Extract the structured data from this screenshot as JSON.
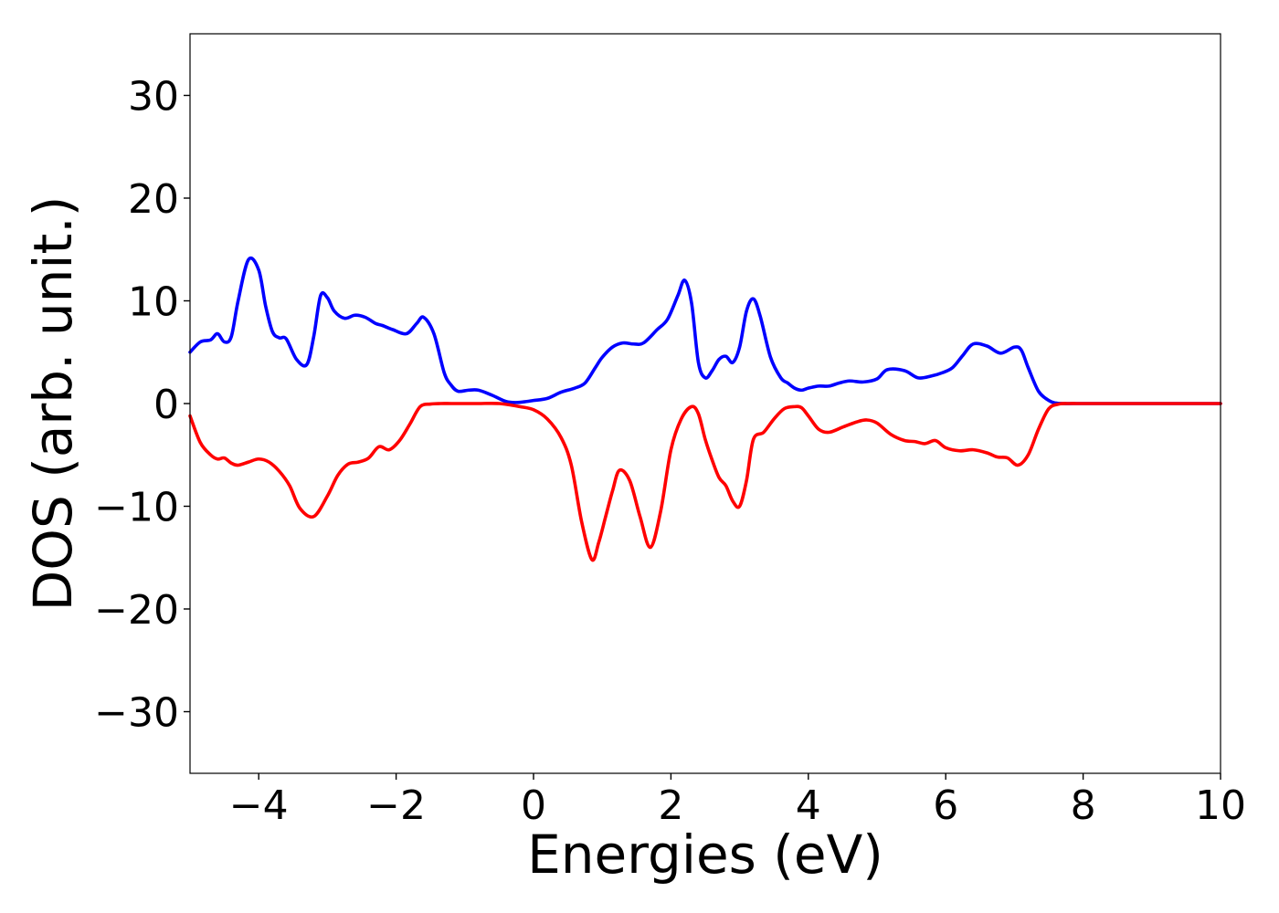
{
  "chart_data": {
    "type": "line",
    "title": "",
    "xlabel": "Energies (eV)",
    "ylabel": "DOS (arb. unit.)",
    "xlim": [
      -5,
      10
    ],
    "ylim": [
      -36,
      36
    ],
    "xticks": [
      -4,
      -2,
      0,
      2,
      4,
      6,
      8,
      10
    ],
    "xtick_labels": [
      "−4",
      "−2",
      "0",
      "2",
      "4",
      "6",
      "8",
      "10"
    ],
    "yticks": [
      30,
      20,
      10,
      0,
      -10,
      -20,
      -30
    ],
    "ytick_labels": [
      "30",
      "20",
      "10",
      "0",
      "−10",
      "−20",
      "−30"
    ],
    "grid": false,
    "legend": false,
    "series": [
      {
        "color": "#0000ff",
        "x": [
          -5.0,
          -4.85,
          -4.7,
          -4.6,
          -4.5,
          -4.4,
          -4.3,
          -4.15,
          -4.0,
          -3.9,
          -3.8,
          -3.7,
          -3.6,
          -3.45,
          -3.3,
          -3.2,
          -3.1,
          -3.0,
          -2.9,
          -2.75,
          -2.6,
          -2.45,
          -2.3,
          -2.2,
          -2.05,
          -1.85,
          -1.7,
          -1.6,
          -1.45,
          -1.3,
          -1.2,
          -1.1,
          -0.95,
          -0.8,
          -0.6,
          -0.4,
          -0.25,
          -0.1,
          0.0,
          0.2,
          0.4,
          0.6,
          0.75,
          0.9,
          1.0,
          1.15,
          1.3,
          1.45,
          1.6,
          1.8,
          1.95,
          2.1,
          2.2,
          2.3,
          2.4,
          2.5,
          2.6,
          2.7,
          2.8,
          2.9,
          3.0,
          3.1,
          3.2,
          3.3,
          3.45,
          3.6,
          3.7,
          3.8,
          3.9,
          4.0,
          4.15,
          4.3,
          4.45,
          4.6,
          4.8,
          5.0,
          5.15,
          5.4,
          5.6,
          5.8,
          5.95,
          6.1,
          6.25,
          6.4,
          6.6,
          6.8,
          7.0,
          7.1,
          7.2,
          7.35,
          7.5,
          7.6,
          7.7,
          7.85,
          8.0,
          8.15,
          8.3,
          8.6,
          9.0,
          9.5,
          10.0
        ],
        "y": [
          5.0,
          6.0,
          6.2,
          6.8,
          6.0,
          6.5,
          10.0,
          14.0,
          13.0,
          9.5,
          7.0,
          6.4,
          6.3,
          4.3,
          3.8,
          6.5,
          10.5,
          10.3,
          9.0,
          8.3,
          8.6,
          8.4,
          7.8,
          7.6,
          7.2,
          6.8,
          7.8,
          8.4,
          6.8,
          3.0,
          1.8,
          1.2,
          1.3,
          1.3,
          0.8,
          0.2,
          0.1,
          0.2,
          0.3,
          0.5,
          1.1,
          1.5,
          2.0,
          3.5,
          4.5,
          5.5,
          5.9,
          5.8,
          5.9,
          7.2,
          8.2,
          10.5,
          12.0,
          9.8,
          4.0,
          2.5,
          3.2,
          4.3,
          4.6,
          4.0,
          5.5,
          9.0,
          10.2,
          8.5,
          4.5,
          2.5,
          2.0,
          1.5,
          1.3,
          1.5,
          1.7,
          1.7,
          2.0,
          2.2,
          2.1,
          2.4,
          3.3,
          3.2,
          2.5,
          2.7,
          3.0,
          3.5,
          4.7,
          5.8,
          5.6,
          4.9,
          5.5,
          5.2,
          3.5,
          1.2,
          0.3,
          0.05,
          0.0,
          0.0,
          0.0,
          0.0,
          0.0,
          0.0,
          0.0,
          0.0,
          0.0
        ]
      },
      {
        "color": "#ff0000",
        "x": [
          -5.0,
          -4.85,
          -4.7,
          -4.6,
          -4.5,
          -4.4,
          -4.3,
          -4.15,
          -4.0,
          -3.85,
          -3.7,
          -3.55,
          -3.4,
          -3.2,
          -3.0,
          -2.85,
          -2.7,
          -2.55,
          -2.4,
          -2.25,
          -2.1,
          -1.95,
          -1.8,
          -1.65,
          -1.5,
          -1.35,
          -1.2,
          -1.0,
          -0.8,
          -0.5,
          -0.2,
          0.0,
          0.2,
          0.4,
          0.55,
          0.7,
          0.85,
          0.95,
          1.05,
          1.15,
          1.25,
          1.4,
          1.55,
          1.7,
          1.85,
          2.0,
          2.15,
          2.3,
          2.4,
          2.5,
          2.6,
          2.7,
          2.8,
          2.9,
          3.0,
          3.1,
          3.2,
          3.35,
          3.5,
          3.65,
          3.8,
          3.9,
          4.0,
          4.15,
          4.3,
          4.5,
          4.7,
          4.85,
          5.0,
          5.2,
          5.4,
          5.55,
          5.7,
          5.85,
          6.0,
          6.2,
          6.4,
          6.6,
          6.75,
          6.9,
          7.05,
          7.2,
          7.35,
          7.5,
          7.65,
          7.8,
          7.9,
          8.0,
          8.15,
          8.3,
          8.5,
          8.75,
          9.0,
          9.5,
          10.0
        ],
        "y": [
          -1.2,
          -3.8,
          -5.0,
          -5.4,
          -5.3,
          -5.8,
          -6.0,
          -5.7,
          -5.4,
          -5.7,
          -6.6,
          -8.0,
          -10.2,
          -11.0,
          -9.0,
          -7.0,
          -5.9,
          -5.7,
          -5.3,
          -4.2,
          -4.5,
          -3.6,
          -2.0,
          -0.3,
          -0.05,
          0.0,
          0.0,
          0.0,
          0.0,
          0.0,
          -0.3,
          -0.6,
          -1.5,
          -3.3,
          -6.0,
          -11.5,
          -15.2,
          -13.5,
          -11.0,
          -8.5,
          -6.5,
          -7.5,
          -11.0,
          -14.0,
          -10.5,
          -4.5,
          -1.5,
          -0.3,
          -1.0,
          -3.5,
          -5.5,
          -7.2,
          -8.0,
          -9.5,
          -10.0,
          -7.5,
          -3.5,
          -2.8,
          -1.5,
          -0.5,
          -0.3,
          -0.4,
          -1.2,
          -2.5,
          -2.8,
          -2.3,
          -1.8,
          -1.6,
          -1.9,
          -3.0,
          -3.6,
          -3.7,
          -3.9,
          -3.6,
          -4.3,
          -4.6,
          -4.5,
          -4.8,
          -5.2,
          -5.3,
          -6.0,
          -5.0,
          -2.5,
          -0.5,
          -0.05,
          0.0,
          0.0,
          0.0,
          0.0,
          0.0,
          0.0,
          0.0,
          0.0,
          0.0,
          0.0
        ]
      }
    ]
  }
}
